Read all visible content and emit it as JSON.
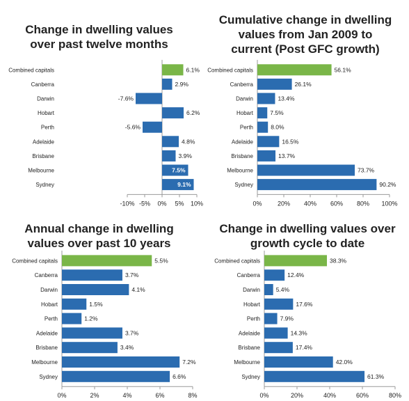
{
  "colors": {
    "highlight": "#7ab648",
    "bar": "#2b6cb0",
    "axis": "#999999",
    "label": "#222222"
  },
  "chart_data": [
    {
      "type": "bar",
      "orientation": "horizontal",
      "title_lines": [
        "Change in dwelling values",
        "over past twelve months"
      ],
      "categories": [
        "Combined capitals",
        "Canberra",
        "Darwin",
        "Hobart",
        "Perth",
        "Adelaide",
        "Brisbane",
        "Melbourne",
        "Sydney"
      ],
      "values": [
        6.1,
        2.9,
        -7.6,
        6.2,
        -5.6,
        4.8,
        3.9,
        7.5,
        9.1
      ],
      "data_labels": [
        "6.1%",
        "2.9%",
        "-7.6%",
        "6.2%",
        "-5.6%",
        "4.8%",
        "3.9%",
        "7.5%",
        "9.1%"
      ],
      "xlim": [
        -10,
        10
      ],
      "ticks": [
        -10,
        -5,
        0,
        5,
        10
      ],
      "tick_labels": [
        "-10%",
        "-5%",
        "0%",
        "5%",
        "10%"
      ],
      "highlight_category": "Combined capitals"
    },
    {
      "type": "bar",
      "orientation": "horizontal",
      "title_lines": [
        "Cumulative change in dwelling",
        "values from Jan 2009 to",
        "current (Post GFC growth)"
      ],
      "categories": [
        "Combined capitals",
        "Canberra",
        "Darwin",
        "Hobart",
        "Perth",
        "Adelaide",
        "Brisbane",
        "Melbourne",
        "Sydney"
      ],
      "values": [
        56.1,
        26.1,
        13.4,
        7.5,
        8.0,
        16.5,
        13.7,
        73.7,
        90.2
      ],
      "data_labels": [
        "56.1%",
        "26.1%",
        "13.4%",
        "7.5%",
        "8.0%",
        "16.5%",
        "13.7%",
        "73.7%",
        "90.2%"
      ],
      "xlim": [
        0,
        100
      ],
      "ticks": [
        0,
        20,
        40,
        60,
        80,
        100
      ],
      "tick_labels": [
        "0%",
        "20%",
        "40%",
        "60%",
        "80%",
        "100%"
      ],
      "highlight_category": "Combined capitals"
    },
    {
      "type": "bar",
      "orientation": "horizontal",
      "title_lines": [
        "Annual change in dwelling",
        "values over past 10 years"
      ],
      "categories": [
        "Combined capitals",
        "Canberra",
        "Darwin",
        "Hobart",
        "Perth",
        "Adelaide",
        "Brisbane",
        "Melbourne",
        "Sydney"
      ],
      "values": [
        5.5,
        3.7,
        4.1,
        1.5,
        1.2,
        3.7,
        3.4,
        7.2,
        6.6
      ],
      "data_labels": [
        "5.5%",
        "3.7%",
        "4.1%",
        "1.5%",
        "1.2%",
        "3.7%",
        "3.4%",
        "7.2%",
        "6.6%"
      ],
      "xlim": [
        0,
        8
      ],
      "ticks": [
        0,
        2,
        4,
        6,
        8
      ],
      "tick_labels": [
        "0%",
        "2%",
        "4%",
        "6%",
        "8%"
      ],
      "highlight_category": "Combined capitals"
    },
    {
      "type": "bar",
      "orientation": "horizontal",
      "title_lines": [
        "Change in dwelling values over",
        "growth cycle to date"
      ],
      "categories": [
        "Combined capitals",
        "Canberra",
        "Darwin",
        "Hobart",
        "Perth",
        "Adelaide",
        "Brisbane",
        "Melbourne",
        "Sydney"
      ],
      "values": [
        38.3,
        12.4,
        5.4,
        17.6,
        7.9,
        14.3,
        17.4,
        42.0,
        61.3
      ],
      "data_labels": [
        "38.3%",
        "12.4%",
        "5.4%",
        "17.6%",
        "7.9%",
        "14.3%",
        "17.4%",
        "42.0%",
        "61.3%"
      ],
      "xlim": [
        0,
        80
      ],
      "ticks": [
        0,
        20,
        40,
        60,
        80
      ],
      "tick_labels": [
        "0%",
        "20%",
        "40%",
        "60%",
        "80%"
      ],
      "highlight_category": "Combined capitals"
    }
  ]
}
